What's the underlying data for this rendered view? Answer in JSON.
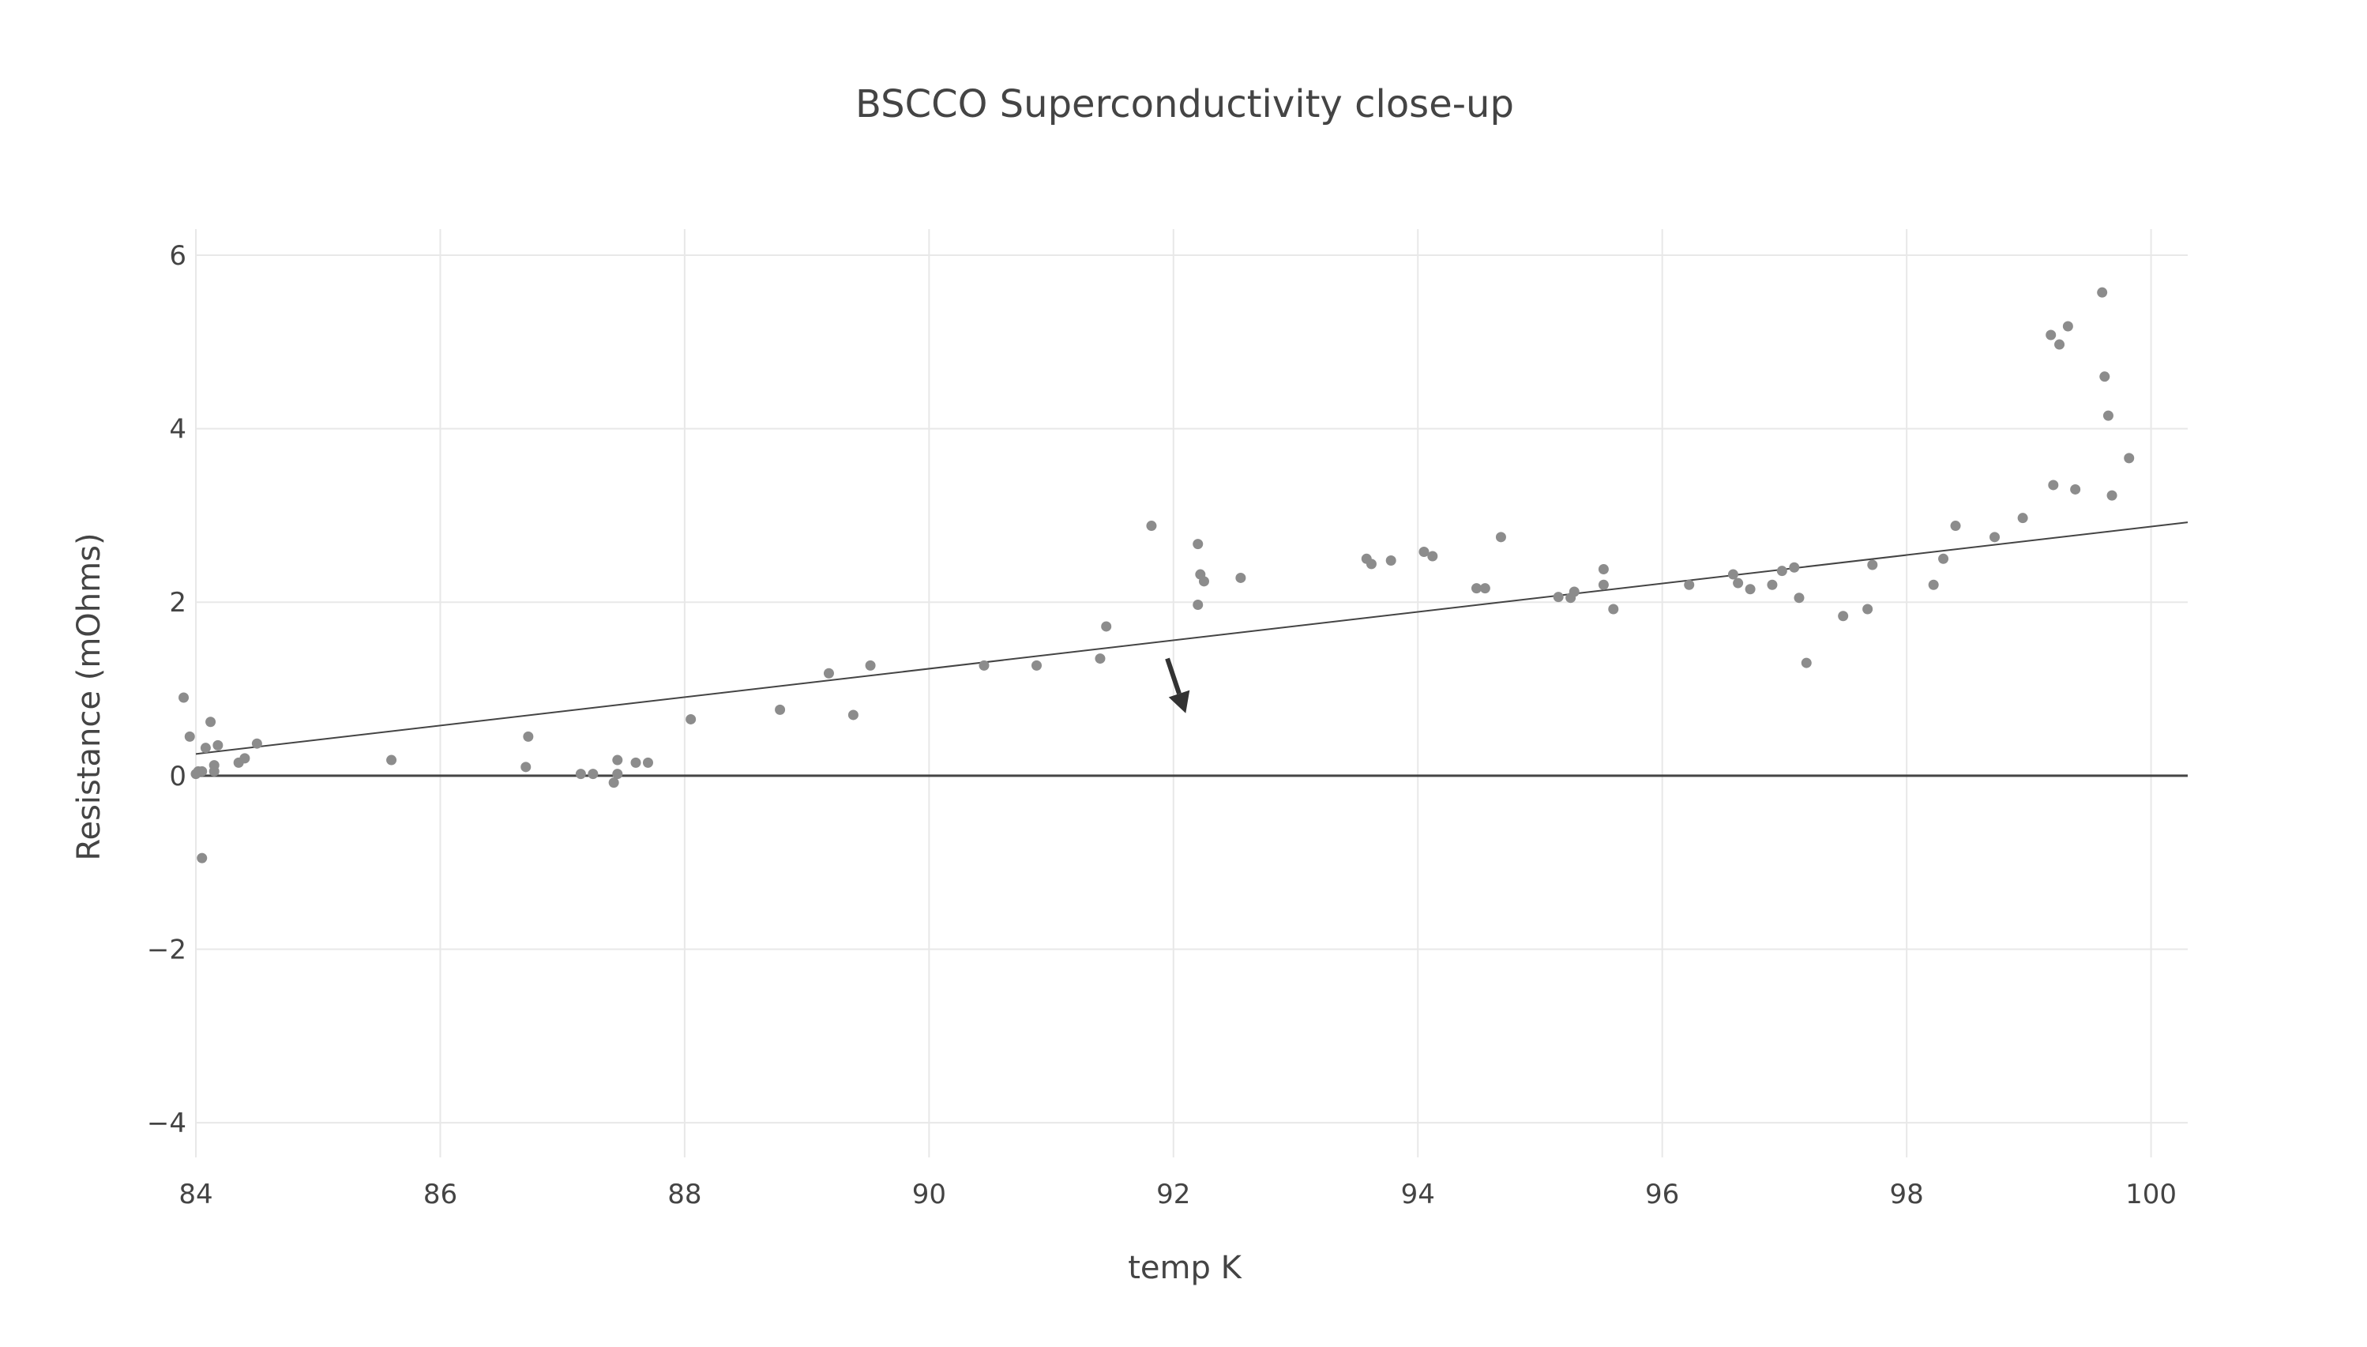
{
  "chart_data": {
    "type": "scatter",
    "title": "BSCCO Superconductivity close-up",
    "xlabel": "temp K",
    "ylabel": "Resistance (mOhms)",
    "xlim": [
      84,
      100.3
    ],
    "ylim": [
      -4.4,
      6.3
    ],
    "x_ticks": [
      84,
      86,
      88,
      90,
      92,
      94,
      96,
      98,
      100
    ],
    "x_tick_labels": [
      "84",
      "86",
      "88",
      "90",
      "92",
      "94",
      "96",
      "98",
      "100"
    ],
    "y_ticks": [
      -4,
      -2,
      0,
      2,
      4,
      6
    ],
    "y_tick_labels": [
      "−4",
      "−2",
      "0",
      "2",
      "4",
      "6"
    ],
    "grid": true,
    "zero_line": true,
    "marker_color": "#8c8c8c",
    "trendline": {
      "x": [
        84,
        100.3
      ],
      "y": [
        0.25,
        2.92
      ]
    },
    "annotation_arrow": {
      "from": [
        91.95,
        1.35
      ],
      "to": [
        92.1,
        0.72
      ]
    },
    "series": [
      {
        "x": [
          83.9,
          83.95,
          84.0,
          84.02,
          84.05,
          84.05,
          84.08,
          84.12,
          84.15,
          84.15,
          84.18,
          84.35,
          84.4,
          84.5,
          85.6,
          86.7,
          86.72,
          87.15,
          87.25,
          87.42,
          87.45,
          87.45,
          87.6,
          87.7,
          88.05,
          88.78,
          89.18,
          89.38,
          89.52,
          90.45,
          90.88,
          91.4,
          91.45,
          91.82,
          92.2,
          92.2,
          92.22,
          92.25,
          92.55,
          93.58,
          93.62,
          93.78,
          94.05,
          94.12,
          94.48,
          94.55,
          94.68,
          95.15,
          95.25,
          95.28,
          95.52,
          95.52,
          95.6,
          96.22,
          96.58,
          96.62,
          96.72,
          96.9,
          96.98,
          97.08,
          97.12,
          97.18,
          97.48,
          97.68,
          97.72,
          98.22,
          98.3,
          98.4,
          98.72,
          98.95,
          99.18,
          99.2,
          99.25,
          99.32,
          99.38,
          99.6,
          99.62,
          99.65,
          99.68,
          99.82
        ],
        "y": [
          0.9,
          0.45,
          0.02,
          0.05,
          -0.95,
          0.05,
          0.32,
          0.62,
          0.05,
          0.12,
          0.35,
          0.15,
          0.2,
          0.37,
          0.18,
          0.1,
          0.45,
          0.02,
          0.02,
          -0.08,
          0.02,
          0.18,
          0.15,
          0.15,
          0.65,
          0.76,
          1.18,
          0.7,
          1.27,
          1.27,
          1.27,
          1.35,
          1.72,
          2.88,
          1.97,
          2.67,
          2.32,
          2.24,
          2.28,
          2.5,
          2.44,
          2.48,
          2.58,
          2.53,
          2.16,
          2.16,
          2.75,
          2.06,
          2.05,
          2.12,
          2.38,
          2.2,
          1.92,
          2.2,
          2.32,
          2.22,
          2.15,
          2.2,
          2.36,
          2.4,
          2.05,
          1.3,
          1.84,
          1.92,
          2.43,
          2.2,
          2.5,
          2.88,
          2.75,
          2.97,
          5.08,
          3.35,
          4.97,
          5.18,
          3.3,
          5.57,
          4.6,
          4.15,
          3.23,
          3.66
        ]
      }
    ]
  }
}
